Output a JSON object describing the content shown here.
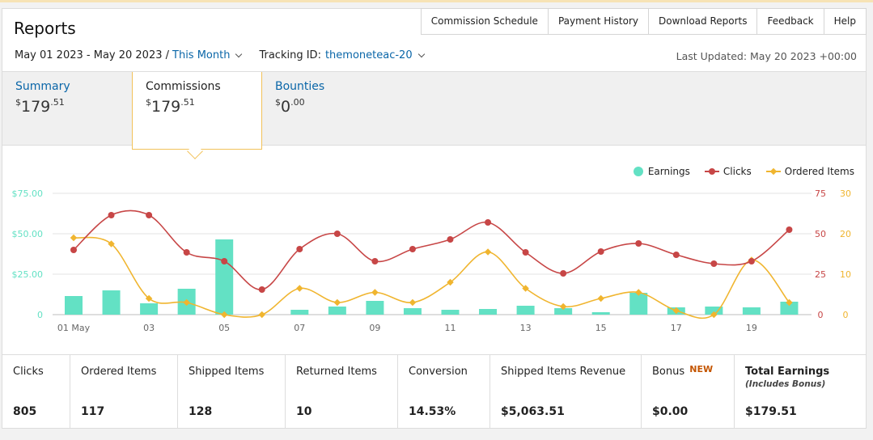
{
  "header": {
    "title": "Reports",
    "nav": [
      "Commission Schedule",
      "Payment History",
      "Download Reports",
      "Feedback",
      "Help"
    ]
  },
  "filters": {
    "date_range": "May 01 2023 - May 20 2023 /",
    "period": "This Month",
    "tracking_label": "Tracking ID:",
    "tracking_id": "themoneteac-20",
    "last_updated": "Last Updated: May 20 2023 +00:00"
  },
  "tabs": [
    {
      "label": "Summary",
      "currency": "$",
      "whole": "179",
      "cents": ".51"
    },
    {
      "label": "Commissions",
      "currency": "$",
      "whole": "179",
      "cents": ".51"
    },
    {
      "label": "Bounties",
      "currency": "$",
      "whole": "0",
      "cents": ".00"
    }
  ],
  "colors": {
    "earnings": "#63e1c4",
    "clicks": "#c74646",
    "orders": "#f0b52f",
    "link": "#0a66a8",
    "new_badge": "#c45500"
  },
  "chart_data": {
    "type": "bar+line",
    "categories": [
      "01 May",
      "02",
      "03",
      "04",
      "05",
      "06",
      "07",
      "08",
      "09",
      "10",
      "11",
      "12",
      "13",
      "14",
      "15",
      "16",
      "17",
      "18",
      "19",
      "20"
    ],
    "x_tick_labels": [
      "01 May",
      "03",
      "05",
      "07",
      "09",
      "11",
      "13",
      "15",
      "17",
      "19"
    ],
    "legend": [
      "Earnings",
      "Clicks",
      "Ordered Items"
    ],
    "legend_position": "top-right",
    "y_left": {
      "ticks": [
        "$75.00",
        "$50.00",
        "$25.00",
        "0"
      ],
      "range": [
        0,
        75
      ]
    },
    "y_right_clicks": {
      "ticks": [
        "75",
        "50",
        "25",
        "0"
      ],
      "range": [
        0,
        75
      ]
    },
    "y_right_orders": {
      "ticks": [
        "30",
        "20",
        "10",
        "0"
      ],
      "range": [
        0,
        30
      ]
    },
    "grid": true,
    "series": [
      {
        "name": "Earnings",
        "kind": "bar",
        "values": [
          11.5,
          15,
          7,
          16,
          46.5,
          0,
          3,
          5,
          8.5,
          4,
          3,
          3.5,
          5.5,
          4,
          1.5,
          13.5,
          4.5,
          5,
          4.5,
          8
        ]
      },
      {
        "name": "Clicks",
        "kind": "line",
        "values": [
          40,
          61.5,
          61.5,
          38.5,
          33,
          15.5,
          40.5,
          50,
          33,
          40.5,
          46.5,
          57,
          38.5,
          25.5,
          39,
          44,
          37,
          31.5,
          33,
          52.5
        ]
      },
      {
        "name": "Ordered Items",
        "kind": "line",
        "values": [
          19,
          17.5,
          4,
          3,
          0,
          0,
          6.5,
          3,
          5.5,
          3,
          8,
          15.5,
          6.5,
          2,
          4,
          5.5,
          1,
          0,
          13.5,
          3
        ]
      }
    ]
  },
  "stats": [
    {
      "label": "Clicks",
      "value": "805"
    },
    {
      "label": "Ordered Items",
      "value": "117"
    },
    {
      "label": "Shipped Items",
      "value": "128"
    },
    {
      "label": "Returned Items",
      "value": "10"
    },
    {
      "label": "Conversion",
      "value": "14.53%"
    },
    {
      "label": "Shipped Items Revenue",
      "value": "$5,063.51"
    },
    {
      "label": "Bonus",
      "badge": "NEW",
      "value": "$0.00"
    },
    {
      "label": "Total Earnings",
      "sub": "(Includes Bonus)",
      "value": "$179.51"
    }
  ]
}
